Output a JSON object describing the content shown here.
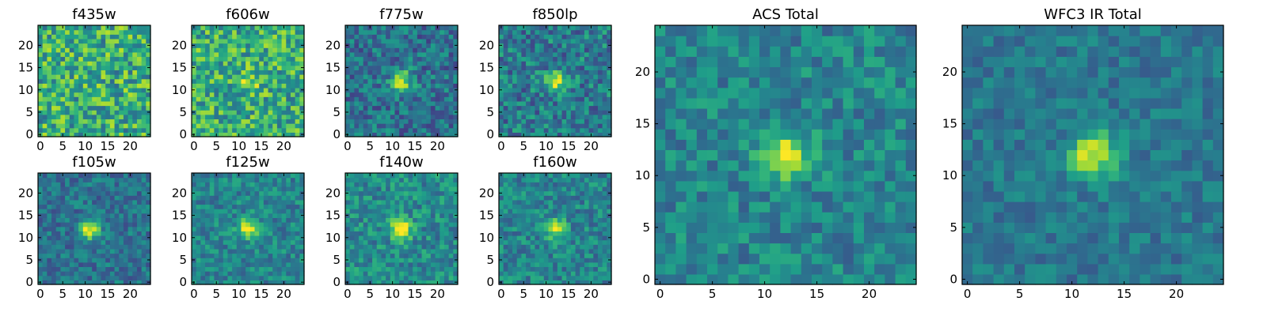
{
  "chart_data": [
    {
      "type": "heatmap",
      "title": "f435w",
      "x_ticks": [
        "0",
        "5",
        "10",
        "15",
        "20"
      ],
      "y_ticks": [
        "0",
        "5",
        "10",
        "15",
        "20"
      ],
      "xlim": [
        0,
        25
      ],
      "ylim": [
        0,
        25
      ],
      "grid": false,
      "colormap": "viridis",
      "source_peak": [
        12,
        12
      ],
      "peak_strength": 0.05,
      "noise": 0.28,
      "base": 0.62
    },
    {
      "type": "heatmap",
      "title": "f606w",
      "x_ticks": [
        "0",
        "5",
        "10",
        "15",
        "20"
      ],
      "y_ticks": [
        "0",
        "5",
        "10",
        "15",
        "20"
      ],
      "xlim": [
        0,
        25
      ],
      "ylim": [
        0,
        25
      ],
      "grid": false,
      "colormap": "viridis",
      "source_peak": [
        12,
        12
      ],
      "peak_strength": 0.25,
      "noise": 0.26,
      "base": 0.62
    },
    {
      "type": "heatmap",
      "title": "f775w",
      "x_ticks": [
        "0",
        "5",
        "10",
        "15",
        "20"
      ],
      "y_ticks": [
        "0",
        "5",
        "10",
        "15",
        "20"
      ],
      "xlim": [
        0,
        25
      ],
      "ylim": [
        0,
        25
      ],
      "grid": false,
      "colormap": "viridis",
      "source_peak": [
        12,
        12
      ],
      "peak_strength": 0.55,
      "noise": 0.2,
      "base": 0.38
    },
    {
      "type": "heatmap",
      "title": "f850lp",
      "x_ticks": [
        "0",
        "5",
        "10",
        "15",
        "20"
      ],
      "y_ticks": [
        "0",
        "5",
        "10",
        "15",
        "20"
      ],
      "xlim": [
        0,
        25
      ],
      "ylim": [
        0,
        25
      ],
      "grid": false,
      "colormap": "viridis",
      "source_peak": [
        12,
        12
      ],
      "peak_strength": 0.45,
      "noise": 0.22,
      "base": 0.42
    },
    {
      "type": "heatmap",
      "title": "f105w",
      "x_ticks": [
        "0",
        "5",
        "10",
        "15",
        "20"
      ],
      "y_ticks": [
        "0",
        "5",
        "10",
        "15",
        "20"
      ],
      "xlim": [
        0,
        25
      ],
      "ylim": [
        0,
        25
      ],
      "grid": false,
      "colormap": "viridis",
      "source_peak": [
        11,
        12
      ],
      "peak_strength": 0.6,
      "noise": 0.16,
      "base": 0.38
    },
    {
      "type": "heatmap",
      "title": "f125w",
      "x_ticks": [
        "0",
        "5",
        "10",
        "15",
        "20"
      ],
      "y_ticks": [
        "0",
        "5",
        "10",
        "15",
        "20"
      ],
      "xlim": [
        0,
        25
      ],
      "ylim": [
        0,
        25
      ],
      "grid": false,
      "colormap": "viridis",
      "source_peak": [
        12,
        12
      ],
      "peak_strength": 0.5,
      "noise": 0.16,
      "base": 0.45
    },
    {
      "type": "heatmap",
      "title": "f140w",
      "x_ticks": [
        "0",
        "5",
        "10",
        "15",
        "20"
      ],
      "y_ticks": [
        "0",
        "5",
        "10",
        "15",
        "20"
      ],
      "xlim": [
        0,
        25
      ],
      "ylim": [
        0,
        25
      ],
      "grid": false,
      "colormap": "viridis",
      "source_peak": [
        12,
        12
      ],
      "peak_strength": 0.55,
      "noise": 0.18,
      "base": 0.48
    },
    {
      "type": "heatmap",
      "title": "f160w",
      "x_ticks": [
        "0",
        "5",
        "10",
        "15",
        "20"
      ],
      "y_ticks": [
        "0",
        "5",
        "10",
        "15",
        "20"
      ],
      "xlim": [
        0,
        25
      ],
      "ylim": [
        0,
        25
      ],
      "grid": false,
      "colormap": "viridis",
      "source_peak": [
        12,
        12
      ],
      "peak_strength": 0.5,
      "noise": 0.17,
      "base": 0.45
    },
    {
      "type": "heatmap",
      "title": "ACS Total",
      "x_ticks": [
        "0",
        "5",
        "10",
        "15",
        "20"
      ],
      "y_ticks": [
        "0",
        "5",
        "10",
        "15",
        "20"
      ],
      "xlim": [
        0,
        25
      ],
      "ylim": [
        0,
        25
      ],
      "grid": false,
      "colormap": "viridis",
      "source_peak": [
        12,
        12
      ],
      "peak_strength": 0.55,
      "noise": 0.16,
      "base": 0.45
    },
    {
      "type": "heatmap",
      "title": "WFC3 IR Total",
      "x_ticks": [
        "0",
        "5",
        "10",
        "15",
        "20"
      ],
      "y_ticks": [
        "0",
        "5",
        "10",
        "15",
        "20"
      ],
      "xlim": [
        0,
        25
      ],
      "ylim": [
        0,
        25
      ],
      "grid": false,
      "colormap": "viridis",
      "source_peak": [
        12,
        12
      ],
      "peak_strength": 0.55,
      "noise": 0.12,
      "base": 0.4
    }
  ]
}
